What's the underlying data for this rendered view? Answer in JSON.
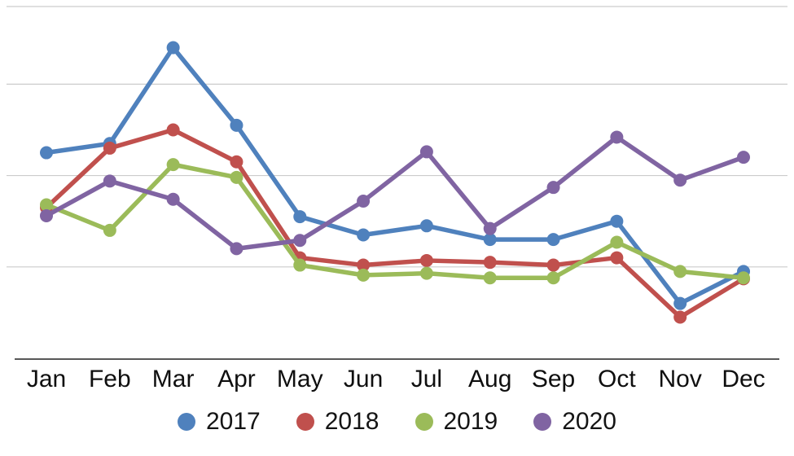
{
  "chart_data": {
    "type": "line",
    "title": "",
    "xlabel": "",
    "ylabel": "",
    "categories": [
      "Jan",
      "Feb",
      "Mar",
      "Apr",
      "May",
      "Jun",
      "Jul",
      "Aug",
      "Sep",
      "Oct",
      "Nov",
      "Dec"
    ],
    "series": [
      {
        "name": "2017",
        "color": "#4f81bd",
        "values": [
          22.5,
          23.5,
          34,
          25.5,
          15.5,
          13.5,
          14.5,
          13,
          13,
          15,
          6,
          9.5
        ]
      },
      {
        "name": "2018",
        "color": "#c0504d",
        "values": [
          16.5,
          23,
          25,
          21.5,
          11,
          10.2,
          10.7,
          10.5,
          10.2,
          11,
          4.5,
          8.7
        ]
      },
      {
        "name": "2019",
        "color": "#9bbb59",
        "values": [
          16.8,
          14,
          21.2,
          19.8,
          10.2,
          9.1,
          9.3,
          8.8,
          8.8,
          12.7,
          9.5,
          8.8
        ]
      },
      {
        "name": "2020",
        "color": "#8064a2",
        "values": [
          15.6,
          19.4,
          17.4,
          12,
          12.9,
          17.2,
          22.6,
          14.2,
          18.7,
          24.2,
          19.5,
          22
        ]
      }
    ],
    "ylim": [
      0,
      38.5
    ],
    "gridline_values": [
      10,
      20,
      30
    ],
    "grid": true,
    "y_axis_tick_labels": [],
    "legend_position": "bottom",
    "axis_color": "#212121",
    "gridline_color": "#cccccc",
    "marker": "circle",
    "line_width": 5.5,
    "marker_radius": 8
  }
}
